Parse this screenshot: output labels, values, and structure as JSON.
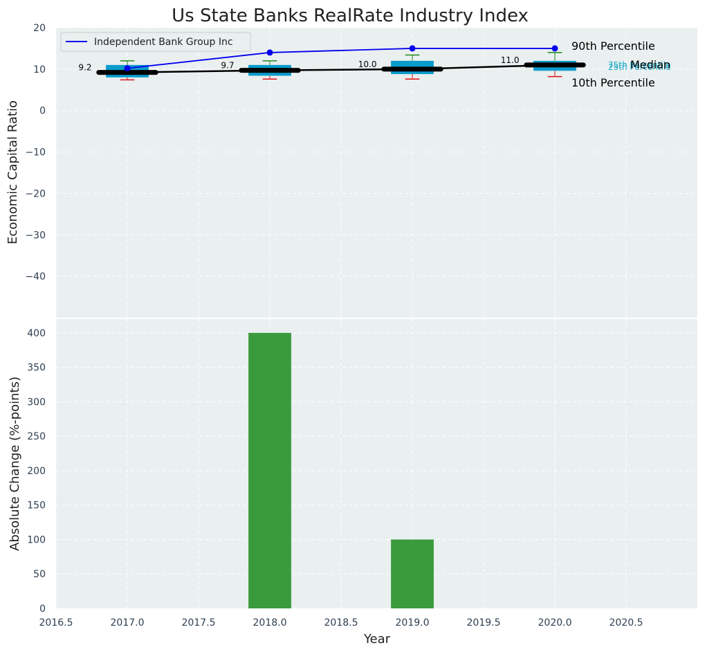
{
  "chart_data": [
    {
      "type": "box",
      "title": "Us State Banks RealRate Industry Index",
      "xlabel": "",
      "ylabel": "Economic Capital Ratio",
      "xlim": [
        2016.5,
        2021.0
      ],
      "ylim": [
        -50,
        20
      ],
      "yticks": [
        20,
        10,
        0,
        -10,
        -20,
        -30,
        -40
      ],
      "yticks_labels": [
        "20",
        "10",
        "0",
        "−10",
        "−20",
        "−30",
        "−40"
      ],
      "grid": true,
      "legend": {
        "position": "top-left",
        "entries": [
          "Independent Bank Group Inc"
        ]
      },
      "years": [
        2017,
        2018,
        2019,
        2020
      ],
      "boxes": [
        {
          "year": 2017,
          "p10": 7.4,
          "p25": 8.0,
          "median": 9.2,
          "p75": 11.0,
          "p90": 12.0
        },
        {
          "year": 2018,
          "p10": 7.6,
          "p25": 8.4,
          "median": 9.7,
          "p75": 11.0,
          "p90": 12.0
        },
        {
          "year": 2019,
          "p10": 7.6,
          "p25": 8.8,
          "median": 10.0,
          "p75": 12.0,
          "p90": 13.4
        },
        {
          "year": 2020,
          "p10": 8.2,
          "p25": 9.6,
          "median": 11.0,
          "p75": 12.0,
          "p90": 14.0
        }
      ],
      "median_labels": [
        "9.2",
        "9.7",
        "10.0",
        "11.0"
      ],
      "company_series": {
        "name": "Independent Bank Group Inc",
        "values": [
          10.2,
          14.0,
          15.0,
          15.0
        ]
      },
      "annotations": {
        "p90": "90th Percentile",
        "p75": "75th Percentile",
        "median": "Median",
        "p25": "25th Percentile",
        "p10": "10th Percentile"
      },
      "colors": {
        "box": "#0a9ccc",
        "company_line": "#0000ee",
        "median_line": "#000000",
        "whisker_top": "#1a8a1a",
        "whisker_bottom": "#dd1111",
        "annotation_small": "#18a8c8",
        "background": "#eaeff0"
      }
    },
    {
      "type": "bar",
      "title": "",
      "xlabel": "Year",
      "ylabel": "Absolute Change (%-points)",
      "xlim": [
        2016.5,
        2021.0
      ],
      "ylim": [
        0,
        420
      ],
      "xticks": [
        2016.5,
        2017.0,
        2017.5,
        2018.0,
        2018.5,
        2019.0,
        2019.5,
        2020.0,
        2020.5
      ],
      "xticks_labels": [
        "2016.5",
        "2017.0",
        "2017.5",
        "2018.0",
        "2018.5",
        "2019.0",
        "2019.5",
        "2020.0",
        "2020.5"
      ],
      "yticks": [
        0,
        50,
        100,
        150,
        200,
        250,
        300,
        350,
        400
      ],
      "yticks_labels": [
        "0",
        "50",
        "100",
        "150",
        "200",
        "250",
        "300",
        "350",
        "400"
      ],
      "grid": true,
      "bars": [
        {
          "x": 2018,
          "value": 400
        },
        {
          "x": 2019,
          "value": 100
        }
      ],
      "colors": {
        "bar": "#3a9b3c",
        "background": "#eaeff0"
      }
    }
  ]
}
